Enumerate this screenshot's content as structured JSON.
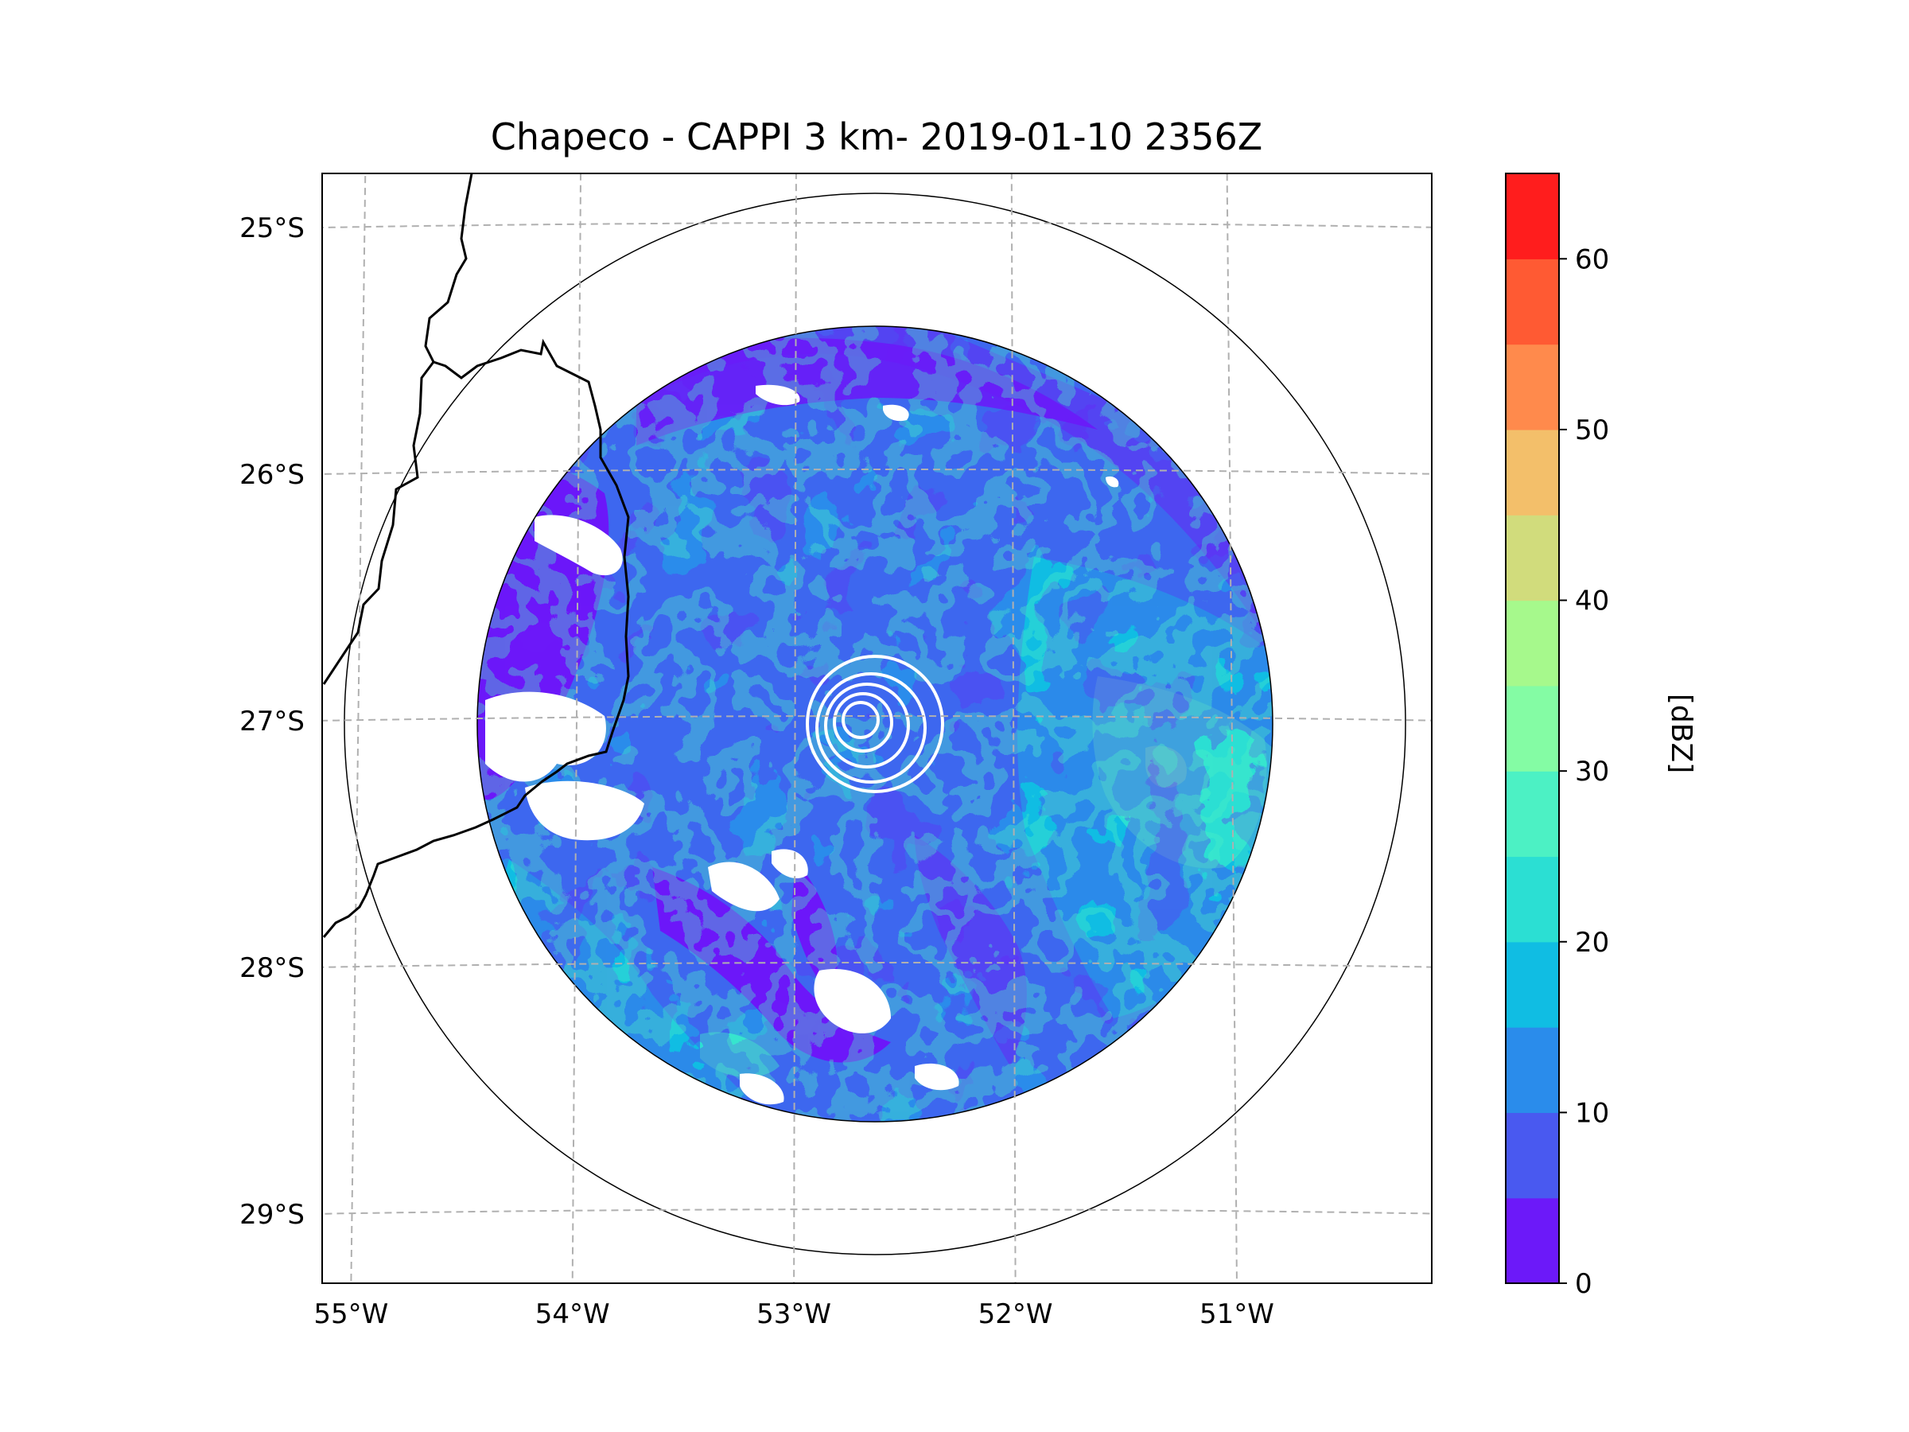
{
  "figure": {
    "title": "Chapeco - CAPPI 3 km- 2019-01-10 2356Z"
  },
  "map": {
    "lon_range": [
      -55.2,
      -50.05
    ],
    "lat_range": [
      -29.3,
      -24.8
    ],
    "radar_center": {
      "lon": -52.6,
      "lat": -27.02
    },
    "x_ticks": [
      {
        "lon": -55,
        "label": "55°W"
      },
      {
        "lon": -54,
        "label": "54°W"
      },
      {
        "lon": -53,
        "label": "53°W"
      },
      {
        "lon": -52,
        "label": "52°W"
      },
      {
        "lon": -51,
        "label": "51°W"
      }
    ],
    "y_ticks": [
      {
        "lat": -25,
        "label": "25°S"
      },
      {
        "lat": -26,
        "label": "26°S"
      },
      {
        "lat": -27,
        "label": "27°S"
      },
      {
        "lat": -28,
        "label": "28°S"
      },
      {
        "lat": -29,
        "label": "29°S"
      }
    ]
  },
  "colorbar": {
    "label": "[dBZ]",
    "range": [
      0,
      65
    ],
    "ticks": [
      {
        "value": 0,
        "label": "0"
      },
      {
        "value": 10,
        "label": "10"
      },
      {
        "value": 20,
        "label": "20"
      },
      {
        "value": 30,
        "label": "30"
      },
      {
        "value": 40,
        "label": "40"
      },
      {
        "value": 50,
        "label": "50"
      },
      {
        "value": 60,
        "label": "60"
      }
    ],
    "levels": [
      {
        "from": 0,
        "to": 5,
        "color": "#6c19f9"
      },
      {
        "from": 5,
        "to": 10,
        "color": "#4959f0"
      },
      {
        "from": 10,
        "to": 15,
        "color": "#2a8ceb"
      },
      {
        "from": 15,
        "to": 20,
        "color": "#10bde3"
      },
      {
        "from": 20,
        "to": 25,
        "color": "#2bdfd3"
      },
      {
        "from": 25,
        "to": 30,
        "color": "#4cf1c4"
      },
      {
        "from": 30,
        "to": 35,
        "color": "#84fca4"
      },
      {
        "from": 35,
        "to": 40,
        "color": "#a6f98c"
      },
      {
        "from": 40,
        "to": 45,
        "color": "#d1dc7c"
      },
      {
        "from": 45,
        "to": 50,
        "color": "#f3bf6a"
      },
      {
        "from": 50,
        "to": 55,
        "color": "#ff8a4c"
      },
      {
        "from": 55,
        "to": 60,
        "color": "#ff5a33"
      },
      {
        "from": 60,
        "to": 65,
        "color": "#ff1d1d"
      }
    ]
  }
}
